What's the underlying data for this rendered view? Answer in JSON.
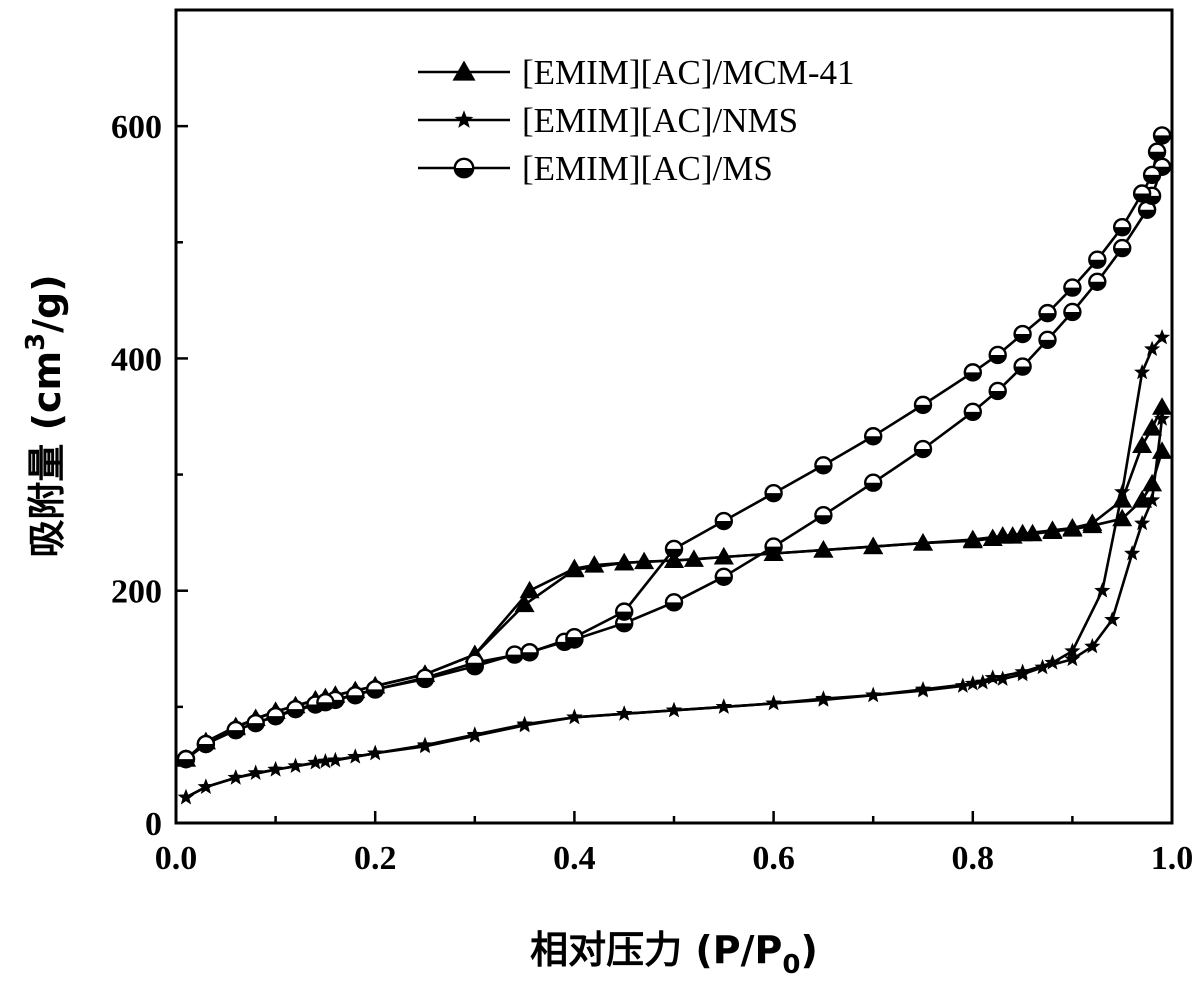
{
  "chart_data": {
    "type": "line",
    "xlabel": "相对压力 (P/P",
    "xlabel_sub": "0",
    "xlabel_end": ")",
    "ylabel": "吸附量 (cm",
    "ylabel_sup": "3",
    "ylabel_end": "/g)",
    "xlim": [
      0.0,
      1.0
    ],
    "ylim": [
      0,
      700
    ],
    "x_ticks": [
      0.0,
      0.2,
      0.4,
      0.6,
      0.8,
      1.0
    ],
    "x_tick_labels": [
      "0.0",
      "0.2",
      "0.4",
      "0.6",
      "0.8",
      "1.0"
    ],
    "y_ticks": [
      0,
      200,
      400,
      600
    ],
    "y_tick_labels": [
      "0",
      "200",
      "400",
      "600"
    ],
    "grid": false,
    "legend_position": "top-center",
    "series": [
      {
        "name": "[EMIM][AC]/MCM-41",
        "marker": "triangle",
        "adsorption": {
          "x": [
            0.01,
            0.03,
            0.06,
            0.08,
            0.1,
            0.12,
            0.14,
            0.16,
            0.18,
            0.2,
            0.25,
            0.3,
            0.35,
            0.4,
            0.45,
            0.5,
            0.55,
            0.6,
            0.65,
            0.7,
            0.75,
            0.8,
            0.82,
            0.84,
            0.86,
            0.88,
            0.9,
            0.92,
            0.95,
            0.97,
            0.98,
            0.99
          ],
          "y": [
            55,
            70,
            82,
            90,
            96,
            101,
            106,
            110,
            114,
            118,
            128,
            145,
            188,
            218,
            224,
            226,
            229,
            232,
            235,
            238,
            241,
            243,
            245,
            247,
            249,
            251,
            253,
            256,
            262,
            278,
            292,
            320
          ]
        },
        "desorption": {
          "x": [
            0.99,
            0.98,
            0.97,
            0.95,
            0.92,
            0.9,
            0.88,
            0.85,
            0.83,
            0.8,
            0.75,
            0.7,
            0.65,
            0.6,
            0.55,
            0.52,
            0.5,
            0.47,
            0.45,
            0.42,
            0.4,
            0.355,
            0.3,
            0.25,
            0.2,
            0.15,
            0.1,
            0.06,
            0.03,
            0.01
          ],
          "y": [
            358,
            340,
            325,
            278,
            258,
            254,
            252,
            249,
            247,
            244,
            241,
            238,
            235,
            232,
            229,
            227,
            226,
            225,
            224,
            222,
            219,
            200,
            145,
            128,
            118,
            108,
            96,
            83,
            70,
            55
          ]
        }
      },
      {
        "name": "[EMIM][AC]/NMS",
        "marker": "star",
        "adsorption": {
          "x": [
            0.01,
            0.03,
            0.06,
            0.08,
            0.1,
            0.12,
            0.14,
            0.16,
            0.18,
            0.2,
            0.25,
            0.3,
            0.35,
            0.4,
            0.45,
            0.5,
            0.55,
            0.6,
            0.65,
            0.7,
            0.75,
            0.79,
            0.81,
            0.83,
            0.85,
            0.87,
            0.9,
            0.92,
            0.94,
            0.96,
            0.97,
            0.98,
            0.99
          ],
          "y": [
            22,
            31,
            39,
            43,
            46,
            49,
            52,
            54,
            57,
            60,
            66,
            75,
            84,
            91,
            94,
            97,
            100,
            103,
            107,
            110,
            114,
            118,
            121,
            124,
            128,
            134,
            141,
            152,
            175,
            232,
            258,
            278,
            348
          ]
        },
        "desorption": {
          "x": [
            0.99,
            0.98,
            0.97,
            0.95,
            0.93,
            0.9,
            0.88,
            0.85,
            0.82,
            0.8,
            0.75,
            0.7,
            0.65,
            0.6,
            0.55,
            0.5,
            0.45,
            0.4,
            0.35,
            0.3,
            0.25,
            0.2,
            0.15,
            0.1,
            0.06,
            0.03,
            0.01
          ],
          "y": [
            418,
            408,
            388,
            285,
            200,
            148,
            138,
            130,
            125,
            120,
            115,
            110,
            106,
            103,
            100,
            97,
            94,
            91,
            85,
            76,
            67,
            60,
            53,
            46,
            39,
            31,
            22
          ]
        }
      },
      {
        "name": "[EMIM][AC]/MS",
        "marker": "circle",
        "adsorption": {
          "x": [
            0.01,
            0.03,
            0.06,
            0.08,
            0.1,
            0.12,
            0.14,
            0.16,
            0.18,
            0.2,
            0.25,
            0.3,
            0.34,
            0.355,
            0.39,
            0.4,
            0.45,
            0.5,
            0.55,
            0.6,
            0.65,
            0.7,
            0.75,
            0.8,
            0.825,
            0.85,
            0.875,
            0.9,
            0.925,
            0.95,
            0.975,
            0.98,
            0.99
          ],
          "y": [
            55,
            68,
            80,
            86,
            92,
            98,
            102,
            106,
            110,
            115,
            124,
            135,
            145,
            147,
            156,
            158,
            172,
            190,
            212,
            238,
            265,
            293,
            322,
            354,
            372,
            393,
            416,
            440,
            466,
            495,
            528,
            540,
            565
          ]
        },
        "desorption": {
          "x": [
            0.99,
            0.985,
            0.98,
            0.97,
            0.95,
            0.925,
            0.9,
            0.875,
            0.85,
            0.825,
            0.8,
            0.75,
            0.7,
            0.65,
            0.6,
            0.55,
            0.5,
            0.45,
            0.4,
            0.355,
            0.3,
            0.25,
            0.2,
            0.15,
            0.1,
            0.06,
            0.03,
            0.01
          ],
          "y": [
            592,
            578,
            558,
            542,
            513,
            485,
            461,
            439,
            421,
            403,
            388,
            360,
            333,
            308,
            284,
            260,
            236,
            182,
            160,
            147,
            138,
            125,
            115,
            104,
            92,
            80,
            68,
            55
          ]
        }
      }
    ]
  }
}
